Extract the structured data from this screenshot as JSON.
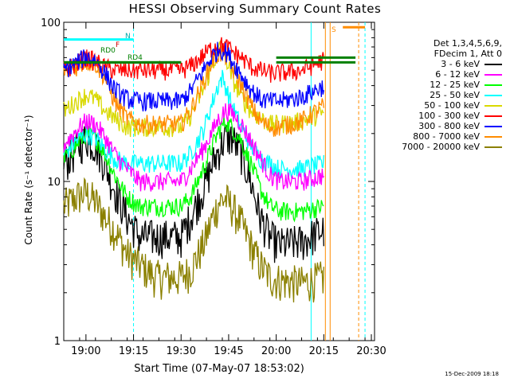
{
  "chart_data": {
    "type": "line",
    "title": "HESSI Observing Summary Count Rates",
    "xlabel": "Start Time (07-May-07 18:53:02)",
    "ylabel": "Count Rate (s⁻¹ detector⁻¹)",
    "x_unit": "minutes after 18:53:02",
    "xlim": [
      0,
      98
    ],
    "ylim": [
      1,
      100
    ],
    "yscale": "log",
    "x_ticks": [
      "19:00",
      "19:15",
      "19:30",
      "19:45",
      "20:00",
      "20:15",
      "20:30"
    ],
    "x_tick_values": [
      7,
      22,
      37,
      52,
      67,
      82,
      97
    ],
    "y_ticks": [
      "1",
      "10",
      "100"
    ],
    "y_tick_values": [
      1,
      10,
      100
    ],
    "legend_header": [
      "Det 1,3,4,5,6,9,",
      "FDecim 1, Att 0"
    ],
    "legend_position": "right",
    "series": [
      {
        "name": "3 - 6 keV",
        "color": "#000000",
        "points": [
          [
            0,
            13
          ],
          [
            4,
            16
          ],
          [
            7,
            19
          ],
          [
            10,
            17
          ],
          [
            13,
            13
          ],
          [
            16,
            9
          ],
          [
            20,
            6
          ],
          [
            24,
            4.5
          ],
          [
            30,
            4.5
          ],
          [
            34,
            4.5
          ],
          [
            37,
            4.5
          ],
          [
            40,
            6
          ],
          [
            44,
            9
          ],
          [
            47,
            13
          ],
          [
            49,
            16
          ],
          [
            51,
            19
          ],
          [
            53,
            19
          ],
          [
            56,
            15
          ],
          [
            59,
            10
          ],
          [
            62,
            6
          ],
          [
            65,
            4.5
          ],
          [
            68,
            4
          ],
          [
            75,
            4.2
          ],
          [
            82,
            5
          ]
        ]
      },
      {
        "name": "6 - 12 keV",
        "color": "#ff00ff",
        "points": [
          [
            0,
            17
          ],
          [
            4,
            21
          ],
          [
            7,
            24
          ],
          [
            10,
            23
          ],
          [
            13,
            19
          ],
          [
            16,
            15
          ],
          [
            20,
            12
          ],
          [
            24,
            10
          ],
          [
            30,
            10
          ],
          [
            37,
            10
          ],
          [
            40,
            12
          ],
          [
            44,
            16
          ],
          [
            47,
            21
          ],
          [
            49,
            25
          ],
          [
            51,
            28
          ],
          [
            53,
            27
          ],
          [
            56,
            23
          ],
          [
            59,
            18
          ],
          [
            62,
            14
          ],
          [
            65,
            11
          ],
          [
            68,
            10
          ],
          [
            75,
            10
          ],
          [
            82,
            11
          ]
        ]
      },
      {
        "name": "12 - 25 keV",
        "color": "#00ff00",
        "points": [
          [
            0,
            14
          ],
          [
            4,
            17
          ],
          [
            7,
            20
          ],
          [
            10,
            19
          ],
          [
            13,
            15
          ],
          [
            16,
            11
          ],
          [
            20,
            8
          ],
          [
            24,
            7
          ],
          [
            30,
            7
          ],
          [
            37,
            7
          ],
          [
            40,
            8
          ],
          [
            44,
            12
          ],
          [
            47,
            17
          ],
          [
            49,
            21
          ],
          [
            51,
            24
          ],
          [
            53,
            22
          ],
          [
            56,
            18
          ],
          [
            59,
            13
          ],
          [
            62,
            9
          ],
          [
            65,
            7
          ],
          [
            68,
            6.5
          ],
          [
            75,
            6.5
          ],
          [
            82,
            7
          ]
        ]
      },
      {
        "name": "25 - 50 keV",
        "color": "#00ffff",
        "points": [
          [
            0,
            15
          ],
          [
            4,
            18
          ],
          [
            7,
            20
          ],
          [
            10,
            19
          ],
          [
            13,
            16
          ],
          [
            16,
            14
          ],
          [
            20,
            13
          ],
          [
            24,
            13
          ],
          [
            30,
            13
          ],
          [
            37,
            13
          ],
          [
            40,
            15
          ],
          [
            44,
            21
          ],
          [
            47,
            32
          ],
          [
            49,
            42
          ],
          [
            50,
            45
          ],
          [
            51,
            40
          ],
          [
            53,
            30
          ],
          [
            56,
            22
          ],
          [
            59,
            17
          ],
          [
            62,
            14
          ],
          [
            65,
            13
          ],
          [
            68,
            12
          ],
          [
            75,
            12
          ],
          [
            82,
            13
          ]
        ]
      },
      {
        "name": "50 - 100 keV",
        "color": "#d9d900",
        "points": [
          [
            0,
            28
          ],
          [
            4,
            32
          ],
          [
            7,
            35
          ],
          [
            10,
            33
          ],
          [
            13,
            28
          ],
          [
            16,
            25
          ],
          [
            20,
            22
          ],
          [
            24,
            22
          ],
          [
            30,
            22
          ],
          [
            37,
            22
          ],
          [
            40,
            26
          ],
          [
            44,
            38
          ],
          [
            47,
            55
          ],
          [
            49,
            68
          ],
          [
            50,
            72
          ],
          [
            51,
            62
          ],
          [
            53,
            45
          ],
          [
            56,
            34
          ],
          [
            59,
            28
          ],
          [
            62,
            25
          ],
          [
            65,
            23
          ],
          [
            68,
            23
          ],
          [
            75,
            24
          ],
          [
            82,
            27
          ]
        ]
      },
      {
        "name": "100 - 300 keV",
        "color": "#ff0000",
        "points": [
          [
            0,
            50
          ],
          [
            4,
            55
          ],
          [
            7,
            60
          ],
          [
            10,
            57
          ],
          [
            13,
            52
          ],
          [
            16,
            50
          ],
          [
            20,
            50
          ],
          [
            24,
            50
          ],
          [
            30,
            50
          ],
          [
            37,
            50
          ],
          [
            40,
            53
          ],
          [
            44,
            62
          ],
          [
            47,
            70
          ],
          [
            49,
            72
          ],
          [
            51,
            71
          ],
          [
            53,
            66
          ],
          [
            56,
            60
          ],
          [
            59,
            53
          ],
          [
            62,
            50
          ],
          [
            65,
            48
          ],
          [
            68,
            48
          ],
          [
            75,
            50
          ],
          [
            82,
            58
          ]
        ]
      },
      {
        "name": "300 - 800 keV",
        "color": "#0000ff",
        "points": [
          [
            0,
            50
          ],
          [
            4,
            56
          ],
          [
            7,
            61
          ],
          [
            10,
            58
          ],
          [
            13,
            48
          ],
          [
            16,
            38
          ],
          [
            20,
            33
          ],
          [
            24,
            32
          ],
          [
            30,
            32
          ],
          [
            37,
            32
          ],
          [
            40,
            37
          ],
          [
            44,
            50
          ],
          [
            47,
            62
          ],
          [
            49,
            68
          ],
          [
            51,
            66
          ],
          [
            53,
            58
          ],
          [
            56,
            47
          ],
          [
            59,
            38
          ],
          [
            62,
            33
          ],
          [
            65,
            32
          ],
          [
            68,
            32
          ],
          [
            75,
            34
          ],
          [
            82,
            40
          ]
        ]
      },
      {
        "name": "800 - 7000 keV",
        "color": "#ff8c00",
        "points": [
          [
            0,
            48
          ],
          [
            4,
            53
          ],
          [
            7,
            57
          ],
          [
            10,
            55
          ],
          [
            13,
            45
          ],
          [
            16,
            32
          ],
          [
            20,
            25
          ],
          [
            24,
            23
          ],
          [
            30,
            23
          ],
          [
            37,
            23
          ],
          [
            40,
            28
          ],
          [
            44,
            42
          ],
          [
            47,
            58
          ],
          [
            49,
            64
          ],
          [
            51,
            62
          ],
          [
            53,
            52
          ],
          [
            56,
            40
          ],
          [
            59,
            30
          ],
          [
            62,
            24
          ],
          [
            65,
            22
          ],
          [
            68,
            22
          ],
          [
            75,
            24
          ],
          [
            82,
            30
          ]
        ]
      },
      {
        "name": "7000 - 20000 keV",
        "color": "#8b8000",
        "points": [
          [
            0,
            7
          ],
          [
            4,
            8
          ],
          [
            7,
            8.5
          ],
          [
            10,
            7.5
          ],
          [
            13,
            6
          ],
          [
            16,
            5
          ],
          [
            20,
            3.5
          ],
          [
            24,
            3
          ],
          [
            28,
            2.6
          ],
          [
            30,
            2.5
          ],
          [
            37,
            2.5
          ],
          [
            40,
            2.8
          ],
          [
            44,
            4
          ],
          [
            47,
            6
          ],
          [
            49,
            7.5
          ],
          [
            51,
            7.8
          ],
          [
            53,
            7
          ],
          [
            56,
            5.5
          ],
          [
            59,
            4
          ],
          [
            62,
            3
          ],
          [
            65,
            2.5
          ],
          [
            68,
            2.4
          ],
          [
            75,
            2.3
          ],
          [
            82,
            2.5
          ]
        ]
      }
    ],
    "state_lines": [
      {
        "label": "N",
        "color": "#00ffff",
        "segments": [
          [
            0,
            22,
            78
          ]
        ]
      },
      {
        "label": "S",
        "color": "#ff8c00",
        "segments": [
          [
            88,
            95,
            93
          ]
        ]
      },
      {
        "label": "RD0",
        "color": "#008000",
        "segments": [
          [
            0,
            37,
            56
          ],
          [
            67,
            92,
            60
          ]
        ]
      },
      {
        "label": "RD4",
        "color": "#008000",
        "segments": [
          [
            0,
            37,
            56
          ],
          [
            67,
            92,
            56
          ]
        ]
      }
    ],
    "annotations": [
      "N",
      "F",
      "RD0",
      "RD4",
      "S"
    ]
  },
  "stamp": "15-Dec-2009 18:18"
}
